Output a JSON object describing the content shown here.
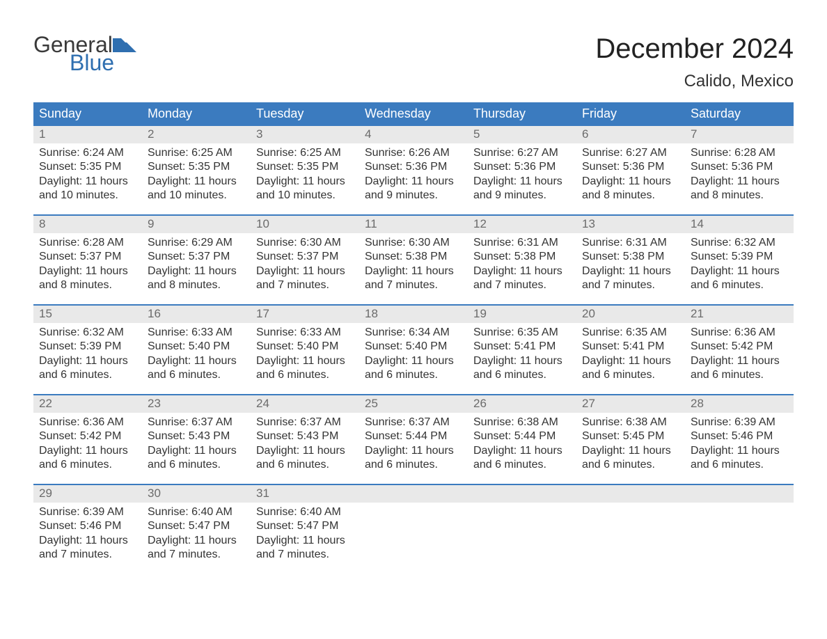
{
  "logo": {
    "text_top": "General",
    "text_bottom": "Blue",
    "mark_color": "#2f6fb0",
    "text_top_color": "#3a3a3a"
  },
  "title": "December 2024",
  "location": "Calido, Mexico",
  "colors": {
    "header_bg": "#3b7bbf",
    "header_text": "#ffffff",
    "daynum_bg": "#e9e9e9",
    "daynum_text": "#6b6b6b",
    "body_text": "#333333",
    "week_border": "#3b7bbf",
    "page_bg": "#ffffff"
  },
  "fonts": {
    "title_size": 40,
    "location_size": 24,
    "dow_size": 18,
    "daynum_size": 17,
    "cell_size": 16
  },
  "days_of_week": [
    "Sunday",
    "Monday",
    "Tuesday",
    "Wednesday",
    "Thursday",
    "Friday",
    "Saturday"
  ],
  "weeks": [
    [
      {
        "n": "1",
        "sunrise": "Sunrise: 6:24 AM",
        "sunset": "Sunset: 5:35 PM",
        "d1": "Daylight: 11 hours",
        "d2": "and 10 minutes."
      },
      {
        "n": "2",
        "sunrise": "Sunrise: 6:25 AM",
        "sunset": "Sunset: 5:35 PM",
        "d1": "Daylight: 11 hours",
        "d2": "and 10 minutes."
      },
      {
        "n": "3",
        "sunrise": "Sunrise: 6:25 AM",
        "sunset": "Sunset: 5:35 PM",
        "d1": "Daylight: 11 hours",
        "d2": "and 10 minutes."
      },
      {
        "n": "4",
        "sunrise": "Sunrise: 6:26 AM",
        "sunset": "Sunset: 5:36 PM",
        "d1": "Daylight: 11 hours",
        "d2": "and 9 minutes."
      },
      {
        "n": "5",
        "sunrise": "Sunrise: 6:27 AM",
        "sunset": "Sunset: 5:36 PM",
        "d1": "Daylight: 11 hours",
        "d2": "and 9 minutes."
      },
      {
        "n": "6",
        "sunrise": "Sunrise: 6:27 AM",
        "sunset": "Sunset: 5:36 PM",
        "d1": "Daylight: 11 hours",
        "d2": "and 8 minutes."
      },
      {
        "n": "7",
        "sunrise": "Sunrise: 6:28 AM",
        "sunset": "Sunset: 5:36 PM",
        "d1": "Daylight: 11 hours",
        "d2": "and 8 minutes."
      }
    ],
    [
      {
        "n": "8",
        "sunrise": "Sunrise: 6:28 AM",
        "sunset": "Sunset: 5:37 PM",
        "d1": "Daylight: 11 hours",
        "d2": "and 8 minutes."
      },
      {
        "n": "9",
        "sunrise": "Sunrise: 6:29 AM",
        "sunset": "Sunset: 5:37 PM",
        "d1": "Daylight: 11 hours",
        "d2": "and 8 minutes."
      },
      {
        "n": "10",
        "sunrise": "Sunrise: 6:30 AM",
        "sunset": "Sunset: 5:37 PM",
        "d1": "Daylight: 11 hours",
        "d2": "and 7 minutes."
      },
      {
        "n": "11",
        "sunrise": "Sunrise: 6:30 AM",
        "sunset": "Sunset: 5:38 PM",
        "d1": "Daylight: 11 hours",
        "d2": "and 7 minutes."
      },
      {
        "n": "12",
        "sunrise": "Sunrise: 6:31 AM",
        "sunset": "Sunset: 5:38 PM",
        "d1": "Daylight: 11 hours",
        "d2": "and 7 minutes."
      },
      {
        "n": "13",
        "sunrise": "Sunrise: 6:31 AM",
        "sunset": "Sunset: 5:38 PM",
        "d1": "Daylight: 11 hours",
        "d2": "and 7 minutes."
      },
      {
        "n": "14",
        "sunrise": "Sunrise: 6:32 AM",
        "sunset": "Sunset: 5:39 PM",
        "d1": "Daylight: 11 hours",
        "d2": "and 6 minutes."
      }
    ],
    [
      {
        "n": "15",
        "sunrise": "Sunrise: 6:32 AM",
        "sunset": "Sunset: 5:39 PM",
        "d1": "Daylight: 11 hours",
        "d2": "and 6 minutes."
      },
      {
        "n": "16",
        "sunrise": "Sunrise: 6:33 AM",
        "sunset": "Sunset: 5:40 PM",
        "d1": "Daylight: 11 hours",
        "d2": "and 6 minutes."
      },
      {
        "n": "17",
        "sunrise": "Sunrise: 6:33 AM",
        "sunset": "Sunset: 5:40 PM",
        "d1": "Daylight: 11 hours",
        "d2": "and 6 minutes."
      },
      {
        "n": "18",
        "sunrise": "Sunrise: 6:34 AM",
        "sunset": "Sunset: 5:40 PM",
        "d1": "Daylight: 11 hours",
        "d2": "and 6 minutes."
      },
      {
        "n": "19",
        "sunrise": "Sunrise: 6:35 AM",
        "sunset": "Sunset: 5:41 PM",
        "d1": "Daylight: 11 hours",
        "d2": "and 6 minutes."
      },
      {
        "n": "20",
        "sunrise": "Sunrise: 6:35 AM",
        "sunset": "Sunset: 5:41 PM",
        "d1": "Daylight: 11 hours",
        "d2": "and 6 minutes."
      },
      {
        "n": "21",
        "sunrise": "Sunrise: 6:36 AM",
        "sunset": "Sunset: 5:42 PM",
        "d1": "Daylight: 11 hours",
        "d2": "and 6 minutes."
      }
    ],
    [
      {
        "n": "22",
        "sunrise": "Sunrise: 6:36 AM",
        "sunset": "Sunset: 5:42 PM",
        "d1": "Daylight: 11 hours",
        "d2": "and 6 minutes."
      },
      {
        "n": "23",
        "sunrise": "Sunrise: 6:37 AM",
        "sunset": "Sunset: 5:43 PM",
        "d1": "Daylight: 11 hours",
        "d2": "and 6 minutes."
      },
      {
        "n": "24",
        "sunrise": "Sunrise: 6:37 AM",
        "sunset": "Sunset: 5:43 PM",
        "d1": "Daylight: 11 hours",
        "d2": "and 6 minutes."
      },
      {
        "n": "25",
        "sunrise": "Sunrise: 6:37 AM",
        "sunset": "Sunset: 5:44 PM",
        "d1": "Daylight: 11 hours",
        "d2": "and 6 minutes."
      },
      {
        "n": "26",
        "sunrise": "Sunrise: 6:38 AM",
        "sunset": "Sunset: 5:44 PM",
        "d1": "Daylight: 11 hours",
        "d2": "and 6 minutes."
      },
      {
        "n": "27",
        "sunrise": "Sunrise: 6:38 AM",
        "sunset": "Sunset: 5:45 PM",
        "d1": "Daylight: 11 hours",
        "d2": "and 6 minutes."
      },
      {
        "n": "28",
        "sunrise": "Sunrise: 6:39 AM",
        "sunset": "Sunset: 5:46 PM",
        "d1": "Daylight: 11 hours",
        "d2": "and 6 minutes."
      }
    ],
    [
      {
        "n": "29",
        "sunrise": "Sunrise: 6:39 AM",
        "sunset": "Sunset: 5:46 PM",
        "d1": "Daylight: 11 hours",
        "d2": "and 7 minutes."
      },
      {
        "n": "30",
        "sunrise": "Sunrise: 6:40 AM",
        "sunset": "Sunset: 5:47 PM",
        "d1": "Daylight: 11 hours",
        "d2": "and 7 minutes."
      },
      {
        "n": "31",
        "sunrise": "Sunrise: 6:40 AM",
        "sunset": "Sunset: 5:47 PM",
        "d1": "Daylight: 11 hours",
        "d2": "and 7 minutes."
      },
      {
        "n": "",
        "sunrise": "",
        "sunset": "",
        "d1": "",
        "d2": ""
      },
      {
        "n": "",
        "sunrise": "",
        "sunset": "",
        "d1": "",
        "d2": ""
      },
      {
        "n": "",
        "sunrise": "",
        "sunset": "",
        "d1": "",
        "d2": ""
      },
      {
        "n": "",
        "sunrise": "",
        "sunset": "",
        "d1": "",
        "d2": ""
      }
    ]
  ]
}
